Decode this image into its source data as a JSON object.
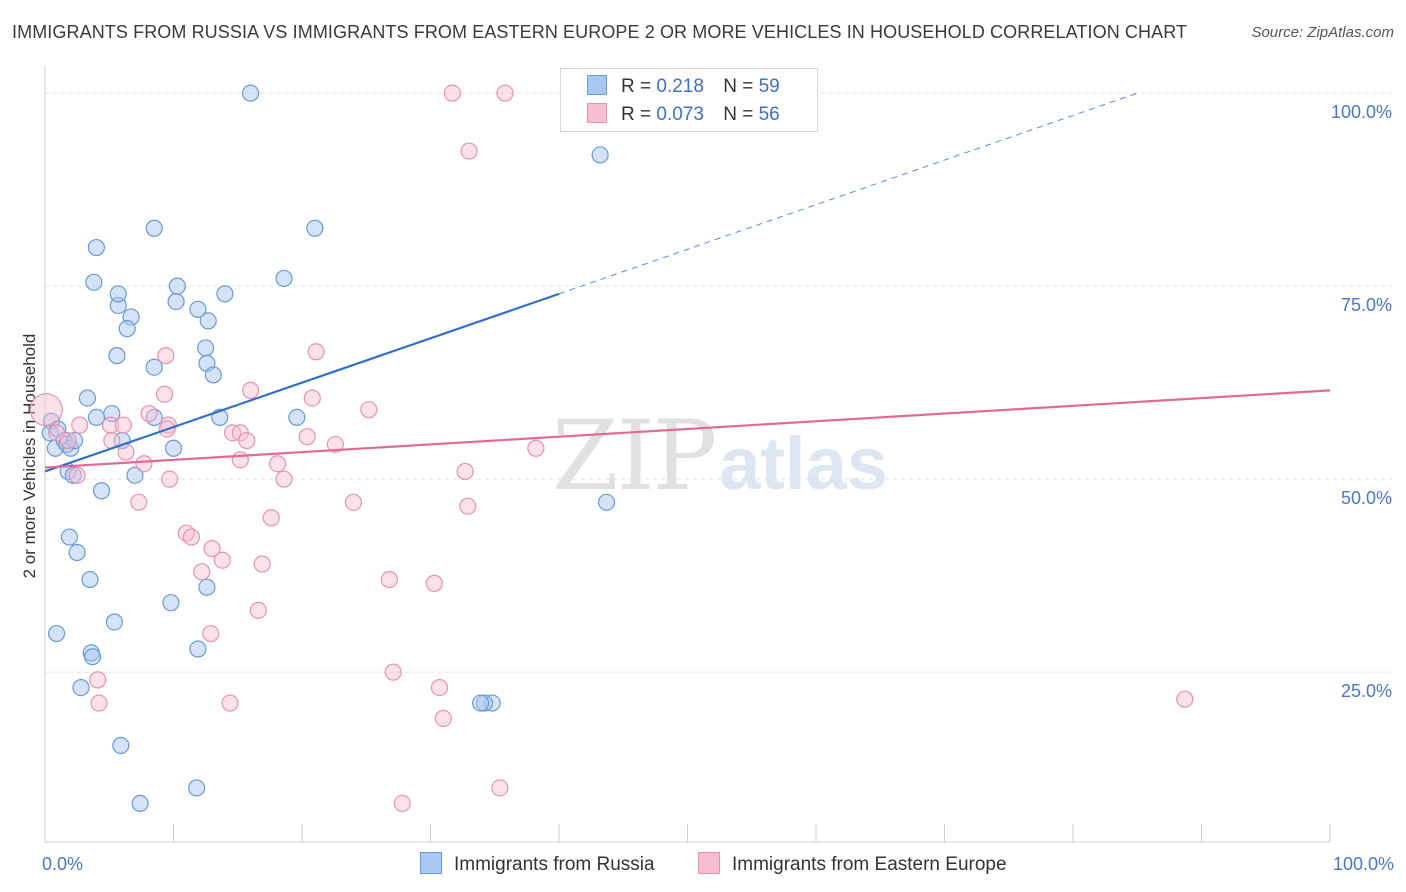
{
  "title": "IMMIGRANTS FROM RUSSIA VS IMMIGRANTS FROM EASTERN EUROPE 2 OR MORE VEHICLES IN HOUSEHOLD CORRELATION CHART",
  "source": "Source: ZipAtlas.com",
  "watermark": {
    "zip": "ZIP",
    "atlas": "atlas"
  },
  "colors": {
    "russia_fill": "#a9c8f0",
    "russia_stroke": "#6b9ad8",
    "russia_line": "#2f6fd0",
    "ee_fill": "#f6bfd0",
    "ee_stroke": "#e693b0",
    "ee_line": "#e06a95",
    "tick_text": "#4a77c8",
    "grid": "#e2e2e2"
  },
  "legend": {
    "r_label": "R =",
    "n_label": "N =",
    "series": [
      {
        "name": "Immigrants from Russia",
        "r": "0.218",
        "n": "59"
      },
      {
        "name": "Immigrants from Eastern Europe",
        "r": "0.073",
        "n": "56"
      }
    ]
  },
  "chart_data": {
    "type": "scatter",
    "title": "IMMIGRANTS FROM RUSSIA VS IMMIGRANTS FROM EASTERN EUROPE 2 OR MORE VEHICLES IN HOUSEHOLD CORRELATION CHART",
    "xlabel": "",
    "ylabel": "2 or more Vehicles in Household",
    "xlim": [
      0,
      100
    ],
    "ylim": [
      3,
      103
    ],
    "x_tick_labels": [
      "0.0%",
      "100.0%"
    ],
    "y_ticks": [
      25,
      50,
      75,
      100
    ],
    "y_tick_labels": [
      "25.0%",
      "50.0%",
      "75.0%",
      "100.0%"
    ],
    "grid": true,
    "legend_position": "top-center",
    "series": [
      {
        "name": "Immigrants from Russia",
        "r": 0.218,
        "n": 59,
        "trend": {
          "x0": 0,
          "y0": 51,
          "x1": 40,
          "y1": 74,
          "dash_to_x": 85,
          "dash_to_y": 100
        },
        "points": [
          [
            0.5,
            57.5
          ],
          [
            0.4,
            56
          ],
          [
            0.8,
            54
          ],
          [
            1,
            56.5
          ],
          [
            1.5,
            55
          ],
          [
            1.7,
            54.5
          ],
          [
            2,
            54
          ],
          [
            2.3,
            55
          ],
          [
            1.8,
            51
          ],
          [
            2.2,
            50.5
          ],
          [
            0.9,
            30
          ],
          [
            2.5,
            40.5
          ],
          [
            1.9,
            42.5
          ],
          [
            3.6,
            27.5
          ],
          [
            3.7,
            27
          ],
          [
            2.8,
            23
          ],
          [
            3.5,
            37
          ],
          [
            3.3,
            60.5
          ],
          [
            4,
            58
          ],
          [
            5.2,
            58.5
          ],
          [
            4.4,
            48.5
          ],
          [
            3.8,
            75.5
          ],
          [
            4,
            80
          ],
          [
            5.7,
            72.5
          ],
          [
            6.7,
            71
          ],
          [
            6.4,
            69.5
          ],
          [
            5.6,
            66
          ],
          [
            5.7,
            74
          ],
          [
            7,
            50.5
          ],
          [
            8.5,
            82.5
          ],
          [
            8.5,
            58
          ],
          [
            10.2,
            73
          ],
          [
            8.5,
            64.5
          ],
          [
            10.3,
            75
          ],
          [
            11.9,
            72
          ],
          [
            12.5,
            67
          ],
          [
            12.6,
            65
          ],
          [
            12.7,
            70.5
          ],
          [
            13.1,
            63.5
          ],
          [
            14,
            74
          ],
          [
            13.6,
            58
          ],
          [
            9.8,
            34
          ],
          [
            12.6,
            36
          ],
          [
            11.9,
            28
          ],
          [
            5.4,
            31.5
          ],
          [
            5.9,
            15.5
          ],
          [
            7.4,
            8
          ],
          [
            11.8,
            10
          ],
          [
            18.6,
            76
          ],
          [
            21,
            82.5
          ],
          [
            16,
            100
          ],
          [
            19.6,
            58
          ],
          [
            34.8,
            21
          ],
          [
            34.2,
            21
          ],
          [
            43.7,
            47
          ],
          [
            33.9,
            21
          ],
          [
            43.2,
            92
          ],
          [
            6,
            55
          ],
          [
            10,
            54
          ]
        ]
      },
      {
        "name": "Immigrants from Eastern Europe",
        "r": 0.073,
        "n": 56,
        "trend": {
          "x0": 0,
          "y0": 51.5,
          "x1": 100,
          "y1": 61.5
        },
        "points": [
          [
            0.1,
            59
          ],
          [
            0.9,
            56
          ],
          [
            1.8,
            55
          ],
          [
            2.7,
            57
          ],
          [
            2.5,
            50.5
          ],
          [
            4.1,
            24
          ],
          [
            4.2,
            21
          ],
          [
            5.1,
            57
          ],
          [
            5.2,
            55
          ],
          [
            6.1,
            57
          ],
          [
            6.3,
            53.5
          ],
          [
            7.3,
            47
          ],
          [
            7.7,
            52
          ],
          [
            8.1,
            58.5
          ],
          [
            9.3,
            61
          ],
          [
            9.4,
            66
          ],
          [
            9.6,
            57
          ],
          [
            9.7,
            50
          ],
          [
            9.5,
            56.5
          ],
          [
            11,
            43
          ],
          [
            11.4,
            42.5
          ],
          [
            12.2,
            38
          ],
          [
            12.9,
            30
          ],
          [
            13,
            41
          ],
          [
            13.8,
            39.5
          ],
          [
            14.4,
            21
          ],
          [
            14.6,
            56
          ],
          [
            15.2,
            52.5
          ],
          [
            15.2,
            56
          ],
          [
            15.7,
            55
          ],
          [
            16,
            61.5
          ],
          [
            16.6,
            33
          ],
          [
            16.9,
            39
          ],
          [
            17.6,
            45
          ],
          [
            18.1,
            52
          ],
          [
            18.6,
            50
          ],
          [
            20.4,
            55.5
          ],
          [
            20.8,
            60.5
          ],
          [
            21.1,
            66.5
          ],
          [
            22.6,
            54.5
          ],
          [
            24,
            47
          ],
          [
            25.2,
            59
          ],
          [
            26.8,
            37
          ],
          [
            27.1,
            25
          ],
          [
            27.8,
            8
          ],
          [
            30.3,
            36.5
          ],
          [
            30.7,
            23
          ],
          [
            31,
            19
          ],
          [
            31.7,
            100
          ],
          [
            33,
            92.5
          ],
          [
            32.7,
            51
          ],
          [
            32.9,
            46.5
          ],
          [
            35.4,
            10
          ],
          [
            35.8,
            100
          ],
          [
            38.2,
            54
          ],
          [
            88.7,
            21.5
          ]
        ]
      }
    ]
  }
}
